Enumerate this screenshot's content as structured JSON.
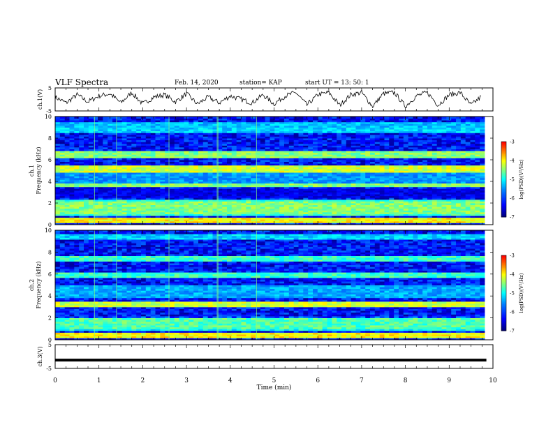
{
  "header": {
    "title": "VLF Spectra",
    "date": "Feb. 14, 2020",
    "station": "station= KAP",
    "start": "start  UT  =   13: 50: 1"
  },
  "colorbar": {
    "label": "log(PSD)(V²/Hz)",
    "ticks": [
      "-3",
      "-4",
      "-5",
      "-6",
      "-7"
    ],
    "colors": [
      "#800000",
      "#ff0000",
      "#ff8000",
      "#ffff00",
      "#80ff80",
      "#00ffff",
      "#0080ff",
      "#0000ff",
      "#000080"
    ]
  },
  "chart_data": [
    {
      "type": "line",
      "name": "ch1-voltage",
      "ylabel": "ch.1(V)",
      "ylim": [
        -5,
        5
      ],
      "yticks": [
        "5",
        "-5"
      ],
      "xlim": [
        0,
        10
      ],
      "description_series": "oscillating signal",
      "series": [
        {
          "x": [
            0,
            0.25,
            0.5,
            0.75,
            1,
            1.25,
            1.5,
            1.75,
            2,
            2.25,
            2.5,
            2.75,
            3,
            3.25,
            3.5,
            3.75,
            4,
            4.25,
            4.5,
            4.75,
            5,
            5.25,
            5.5,
            5.75,
            6,
            6.25,
            6.5,
            6.75,
            7,
            7.25,
            7.5,
            7.75,
            8,
            8.25,
            8.5,
            8.75,
            9,
            9.25,
            9.5,
            9.75
          ],
          "values": [
            1,
            -1.5,
            2,
            -1,
            1.5,
            2.5,
            -1.5,
            3,
            -2,
            1,
            2,
            -1,
            2.5,
            -2,
            1,
            -1.5,
            1.5,
            0,
            -1.5,
            2,
            -2,
            1.5,
            3,
            -2.5,
            2,
            3,
            -2.5,
            2,
            3,
            -3,
            2.5,
            3,
            -3,
            1.5,
            3,
            -2.5,
            2,
            3,
            -2.5,
            1.5
          ]
        }
      ]
    },
    {
      "type": "heatmap",
      "name": "ch1-spectrogram",
      "ylabel": "ch.1",
      "ylabel2": "Frequency (kHz)",
      "ylim": [
        0,
        10
      ],
      "yticks": [
        "10",
        "8",
        "6",
        "4",
        "2",
        "0"
      ],
      "xlim": [
        0,
        10
      ],
      "zlim": [
        -7,
        -3
      ],
      "bands": [
        {
          "f": [
            0.3,
            0.5
          ],
          "value": -4.0
        },
        {
          "f": [
            1.0,
            2.2
          ],
          "value": -4.8
        },
        {
          "f": [
            2.7,
            3.1
          ],
          "value": -6.5
        },
        {
          "f": [
            3.6,
            3.8
          ],
          "value": -4.5
        },
        {
          "f": [
            4.0,
            4.6
          ],
          "value": -5.5
        },
        {
          "f": [
            5.0,
            5.3
          ],
          "value": -4.2
        },
        {
          "f": [
            6.4,
            6.6
          ],
          "value": -4.5
        },
        {
          "f": [
            8.6,
            8.8
          ],
          "value": -5.2
        },
        {
          "f": [
            9.2,
            9.4
          ],
          "value": -5.3
        }
      ]
    },
    {
      "type": "heatmap",
      "name": "ch2-spectrogram",
      "ylabel": "ch.2",
      "ylabel2": "Frequency (kHz)",
      "ylim": [
        0,
        10
      ],
      "yticks": [
        "10",
        "8",
        "6",
        "4",
        "2",
        "0"
      ],
      "xlim": [
        0,
        10
      ],
      "zlim": [
        -7,
        -3
      ],
      "bands": [
        {
          "f": [
            0.3,
            0.5
          ],
          "value": -4.0
        },
        {
          "f": [
            1.0,
            1.8
          ],
          "value": -5.0
        },
        {
          "f": [
            3.2,
            3.4
          ],
          "value": -4.2
        },
        {
          "f": [
            4.0,
            4.8
          ],
          "value": -5.4
        },
        {
          "f": [
            5.8,
            6.0
          ],
          "value": -4.8
        },
        {
          "f": [
            7.3,
            7.5
          ],
          "value": -4.8
        },
        {
          "f": [
            9.3,
            9.5
          ],
          "value": -5.2
        }
      ]
    },
    {
      "type": "line",
      "name": "ch3-voltage",
      "ylabel": "ch.3(V)",
      "ylim": [
        -5,
        5
      ],
      "yticks": [
        "5",
        "-5"
      ],
      "xlim": [
        0,
        10
      ],
      "xticks": [
        "0",
        "1",
        "2",
        "3",
        "4",
        "5",
        "6",
        "7",
        "8",
        "9",
        "10"
      ],
      "xlabel": "Time  (min)",
      "series": [
        {
          "x": [
            0,
            9.85
          ],
          "values": [
            -1.5,
            -1.5
          ]
        }
      ]
    }
  ]
}
